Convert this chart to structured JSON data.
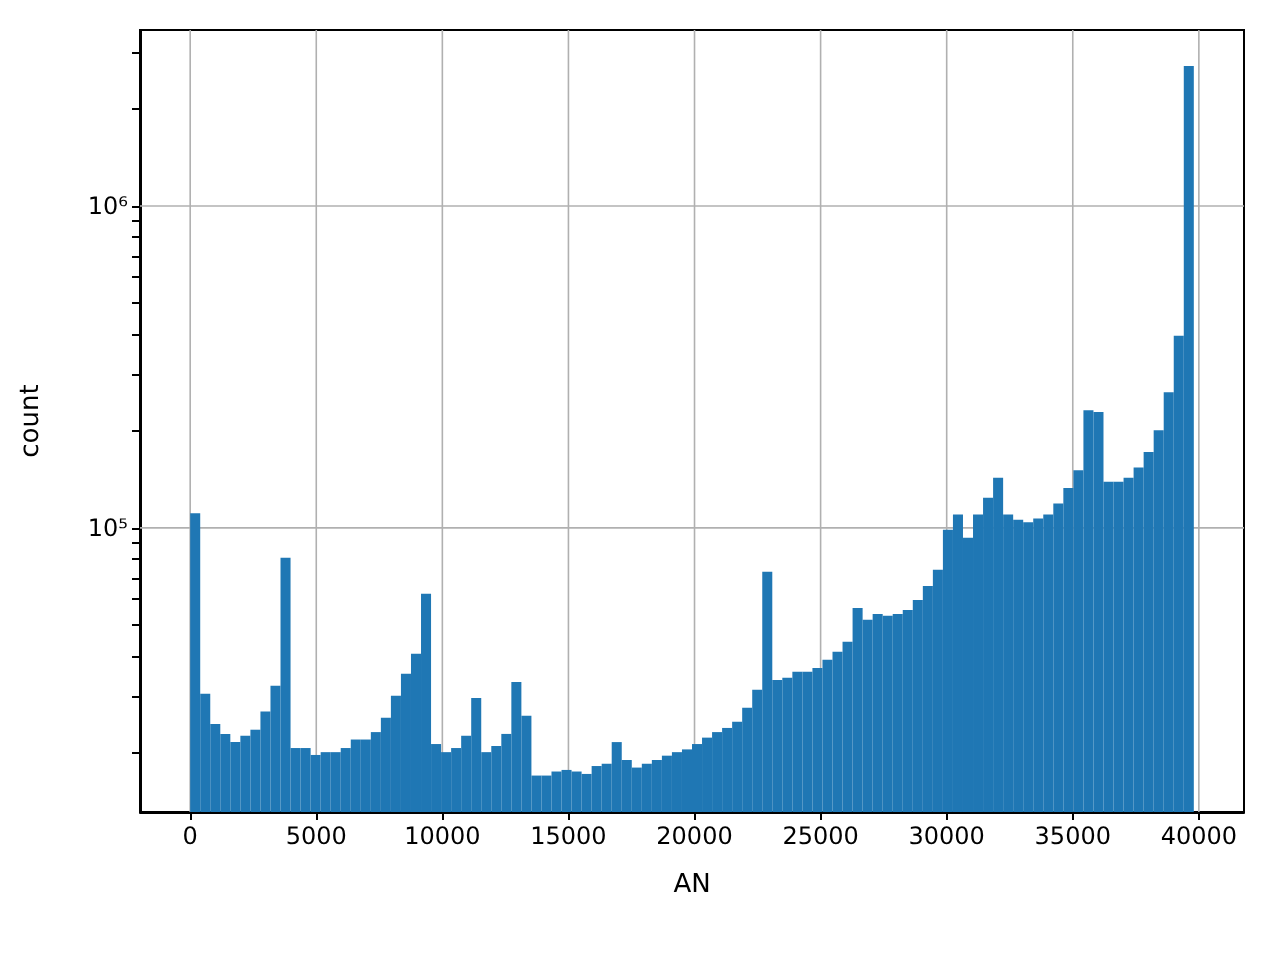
{
  "chart_data": {
    "type": "histogram",
    "xlabel": "AN",
    "ylabel": "count",
    "color": "#1f77b4",
    "log": "y",
    "grid": true,
    "bins": [
      0,
      398,
      796,
      1194,
      1592,
      1990,
      2388,
      2786,
      3184,
      3582,
      3980,
      4378,
      4776,
      5174,
      5572,
      5970,
      6368,
      6766,
      7164,
      7562,
      7960,
      8358,
      8756,
      9154,
      9552,
      9950,
      10348,
      10746,
      11144,
      11542,
      11940,
      12338,
      12736,
      13134,
      13532,
      13930,
      14328,
      14726,
      15124,
      15522,
      15920,
      16318,
      16716,
      17114,
      17512,
      17910,
      18308,
      18706,
      19104,
      19502,
      19900,
      20298,
      20696,
      21094,
      21492,
      21890,
      22288,
      22686,
      23084,
      23482,
      23880,
      24278,
      24676,
      25074,
      25472,
      25870,
      26268,
      26666,
      27064,
      27462,
      27860,
      28258,
      28656,
      29054,
      29452,
      29850,
      30248,
      30646,
      31044,
      31442,
      31840,
      32238,
      32636,
      33034,
      33432,
      33830,
      34228,
      34626,
      35024,
      35422,
      35820,
      36218,
      36616,
      37014,
      37412,
      37810,
      38208,
      38606,
      39004,
      39402,
      39800
    ],
    "values": [
      111000,
      30500,
      24600,
      22900,
      21600,
      22600,
      23600,
      26900,
      32300,
      80700,
      20700,
      20700,
      19700,
      20100,
      20100,
      20700,
      22000,
      22000,
      23200,
      25700,
      30100,
      35200,
      40600,
      62400,
      21300,
      20100,
      20700,
      22600,
      29600,
      20100,
      21000,
      22900,
      33200,
      26100,
      17000,
      17000,
      17500,
      17700,
      17500,
      17200,
      18200,
      18500,
      21600,
      19000,
      18000,
      18500,
      19000,
      19600,
      20100,
      20500,
      21300,
      22300,
      23200,
      23900,
      25000,
      27600,
      31400,
      73000,
      33700,
      34200,
      35700,
      35700,
      36700,
      38900,
      41200,
      44300,
      56400,
      51800,
      54000,
      53300,
      54000,
      55600,
      59700,
      66000,
      74100,
      98600,
      110000,
      93100,
      110000,
      124000,
      143000,
      110000,
      106000,
      104000,
      107000,
      110000,
      119000,
      133000,
      151000,
      232000,
      229000,
      139000,
      139000,
      143000,
      154000,
      172000,
      201000,
      264000,
      395000,
      2720000
    ],
    "xlim": [
      -1990,
      41790
    ],
    "xticks": [
      0,
      5000,
      10000,
      15000,
      20000,
      25000,
      30000,
      35000,
      40000
    ],
    "ylim": [
      13100,
      3520000
    ],
    "yticks": [
      {
        "value": 20000,
        "label": null
      },
      {
        "value": 30000,
        "label": null
      },
      {
        "value": 40000,
        "label": null
      },
      {
        "value": 50000,
        "label": null
      },
      {
        "value": 60000,
        "label": null
      },
      {
        "value": 70000,
        "label": null
      },
      {
        "value": 80000,
        "label": null
      },
      {
        "value": 90000,
        "label": null
      },
      {
        "value": 100000,
        "label": "10⁵"
      },
      {
        "value": 200000,
        "label": null
      },
      {
        "value": 300000,
        "label": null
      },
      {
        "value": 400000,
        "label": null
      },
      {
        "value": 500000,
        "label": null
      },
      {
        "value": 600000,
        "label": null
      },
      {
        "value": 700000,
        "label": null
      },
      {
        "value": 800000,
        "label": null
      },
      {
        "value": 900000,
        "label": null
      },
      {
        "value": 1000000,
        "label": "10⁶"
      },
      {
        "value": 2000000,
        "label": null
      },
      {
        "value": 3000000,
        "label": null
      }
    ]
  }
}
